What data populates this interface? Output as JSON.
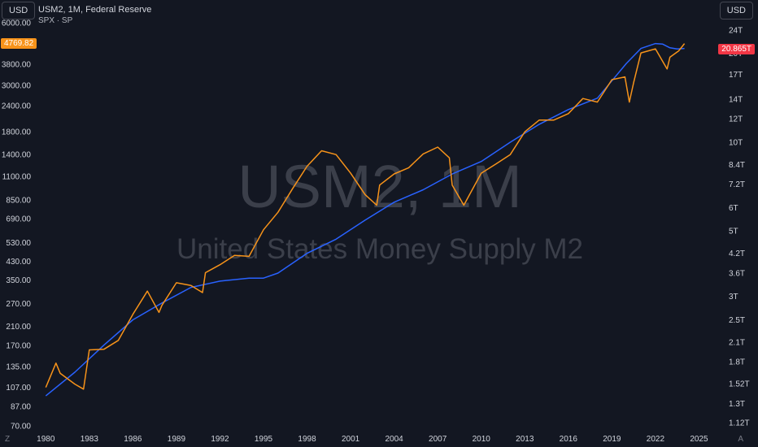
{
  "header": {
    "currency_left": "USD",
    "currency_right": "USD",
    "title": "USM2, 1M, Federal Reserve",
    "overlay": "SPX · SP"
  },
  "watermark": {
    "symbol": "USM2, 1M",
    "description": "United States Money Supply M2"
  },
  "corners": {
    "left": "Z",
    "right": "A"
  },
  "tags": {
    "spx_last": "4769.82",
    "m2_last": "20.865T",
    "spx_color": "#f7931a",
    "m2_color": "#f23645"
  },
  "colors": {
    "background": "#131722",
    "m2_line": "#2962ff",
    "spx_line": "#f7931a",
    "axis_text": "#d1d4dc",
    "watermark_text": "#434651"
  },
  "chart_data": {
    "type": "line",
    "x_ticks": [
      "1980",
      "1983",
      "1986",
      "1989",
      "1992",
      "1995",
      "1998",
      "2001",
      "2004",
      "2007",
      "2010",
      "2013",
      "2016",
      "2019",
      "2022",
      "2025"
    ],
    "y_left_ticks": [
      "6000.00",
      "4769.82",
      "3800.00",
      "3000.00",
      "2400.00",
      "1800.00",
      "1400.00",
      "1100.00",
      "850.00",
      "690.00",
      "530.00",
      "430.00",
      "350.00",
      "270.00",
      "210.00",
      "170.00",
      "135.00",
      "107.00",
      "87.00",
      "70.00"
    ],
    "y_right_ticks": [
      "24T",
      "20T",
      "17T",
      "14T",
      "12T",
      "10T",
      "8.4T",
      "7.2T",
      "6T",
      "5T",
      "4.2T",
      "3.6T",
      "3T",
      "2.5T",
      "2.1T",
      "1.8T",
      "1.52T",
      "1.3T",
      "1.12T"
    ],
    "log_scale": true,
    "grid": false,
    "series": [
      {
        "name": "USM2, 1M, Federal Reserve",
        "color": "#2962ff",
        "x": [
          1980,
          1982,
          1984,
          1986,
          1988,
          1990,
          1992,
          1994,
          1995,
          1996,
          1998,
          2000,
          2002,
          2004,
          2006,
          2008,
          2010,
          2012,
          2014,
          2016,
          2018,
          2020,
          2021,
          2022,
          2022.5,
          2023,
          2023.5,
          2024
        ],
        "y": [
          1.38,
          1.66,
          2.05,
          2.5,
          2.85,
          3.22,
          3.38,
          3.46,
          3.46,
          3.6,
          4.2,
          4.69,
          5.44,
          6.26,
          6.9,
          7.8,
          8.6,
          10.0,
          11.5,
          12.9,
          14.1,
          18.5,
          20.8,
          21.6,
          21.5,
          20.9,
          20.7,
          20.8
        ]
      },
      {
        "name": "SPX",
        "color": "#f7931a",
        "x": [
          1980,
          1980.7,
          1981,
          1982,
          1982.6,
          1983,
          1984,
          1985,
          1986,
          1987,
          1987.8,
          1988,
          1989,
          1990,
          1990.8,
          1991,
          1992,
          1993,
          1994,
          1995,
          1996,
          1997,
          1998,
          1999,
          2000,
          2001,
          2002,
          2002.8,
          2003,
          2004,
          2005,
          2006,
          2007,
          2007.8,
          2008,
          2008.8,
          2009.2,
          2010,
          2011,
          2012,
          2013,
          2014,
          2015,
          2016,
          2017,
          2018,
          2019,
          2019.9,
          2020.2,
          2020.5,
          2021,
          2022,
          2022.8,
          2023,
          2023.6,
          2024
        ],
        "y": [
          107,
          140,
          125,
          111,
          105,
          162,
          163,
          180,
          240,
          310,
          245,
          265,
          340,
          330,
          305,
          380,
          415,
          460,
          455,
          610,
          740,
          960,
          1230,
          1460,
          1400,
          1140,
          900,
          800,
          1000,
          1130,
          1210,
          1410,
          1520,
          1350,
          1000,
          800,
          900,
          1140,
          1260,
          1400,
          1800,
          2050,
          2050,
          2200,
          2600,
          2500,
          3200,
          3300,
          2500,
          3100,
          4300,
          4500,
          3600,
          4100,
          4400,
          4770
        ]
      }
    ]
  }
}
